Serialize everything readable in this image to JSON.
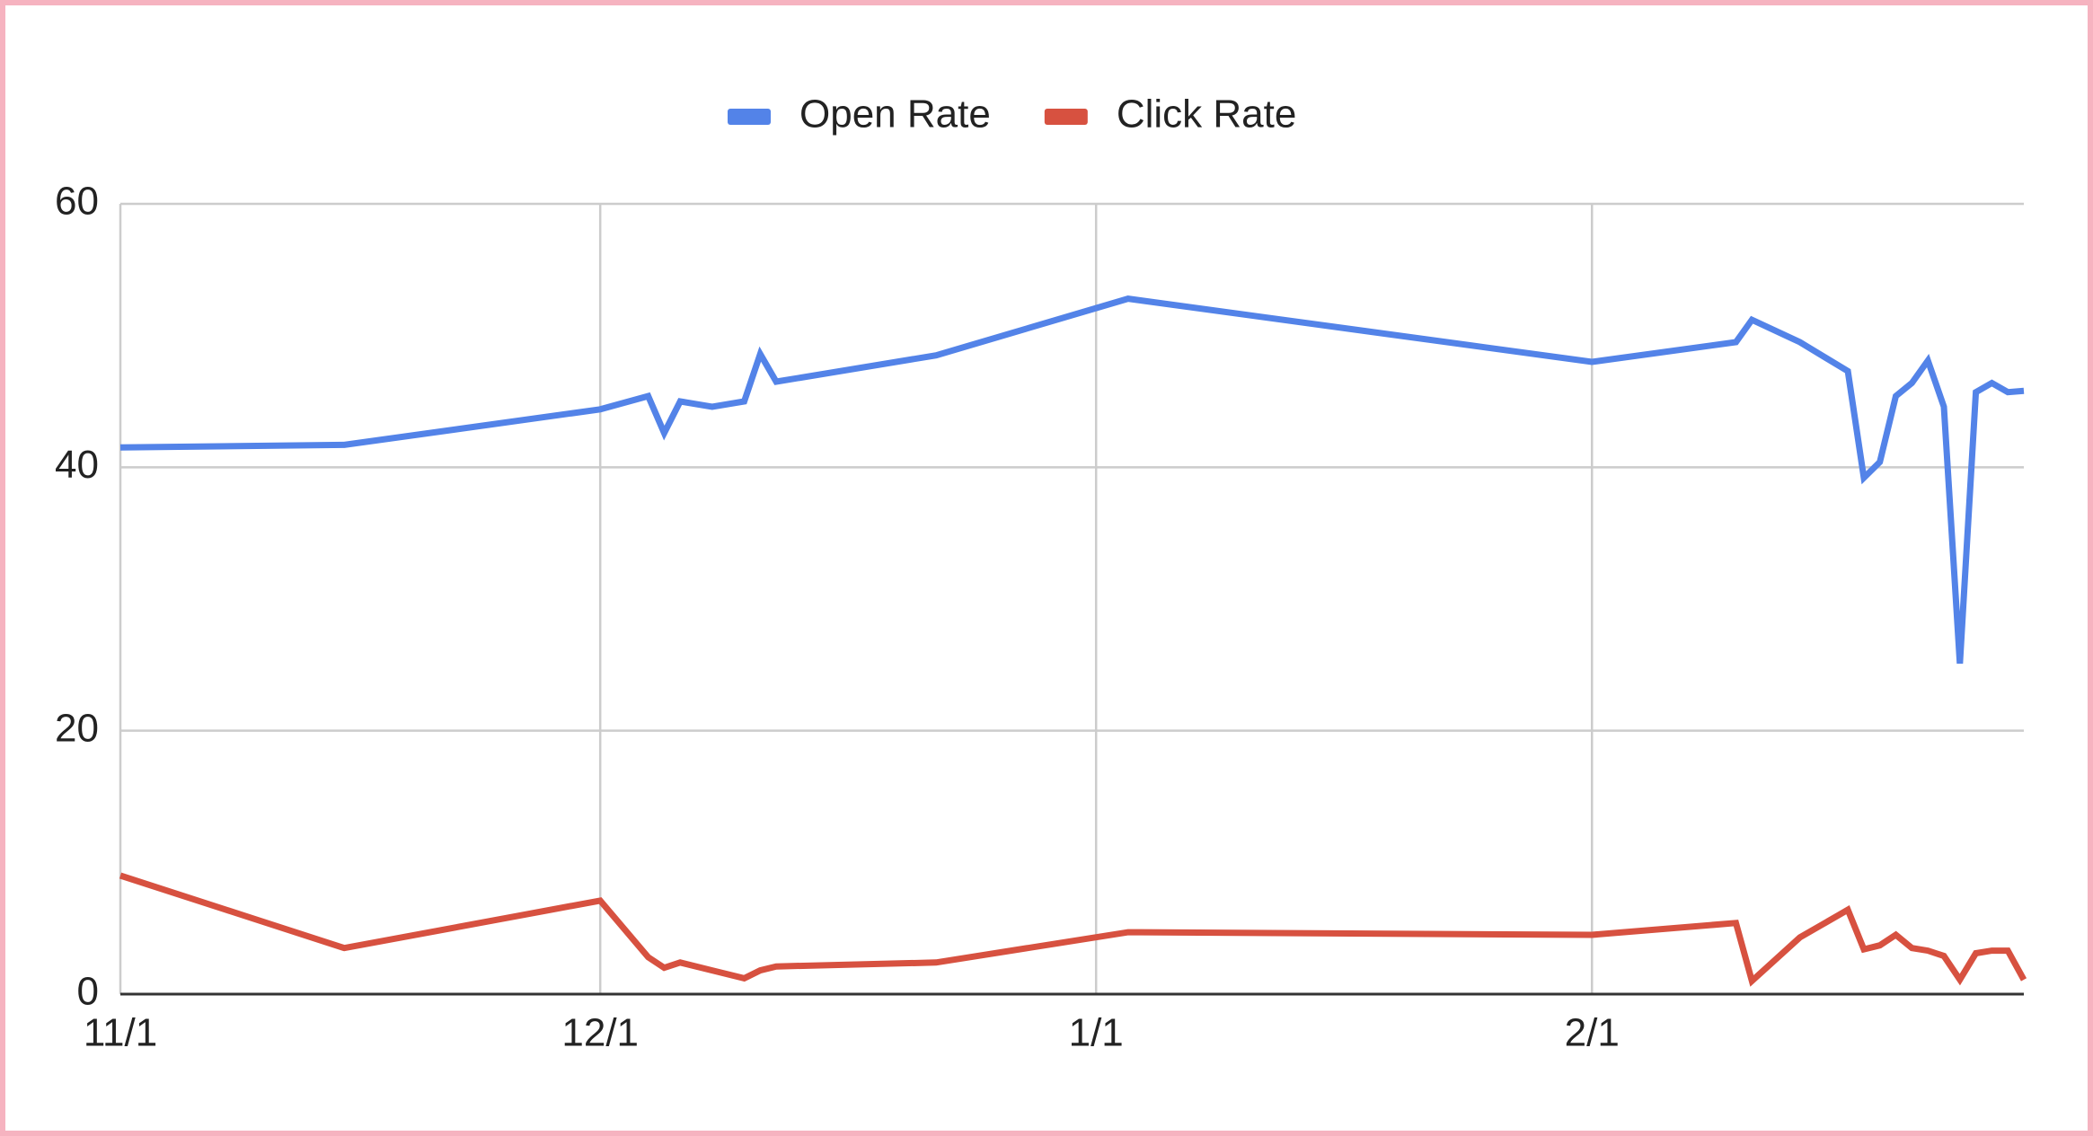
{
  "chart_data": {
    "type": "line",
    "x": [
      "11/1",
      "11/15",
      "12/1",
      "12/4",
      "12/5",
      "12/6",
      "12/8",
      "12/10",
      "12/11",
      "12/12",
      "12/22",
      "1/3",
      "2/1",
      "2/10",
      "2/11",
      "2/14",
      "2/17",
      "2/18",
      "2/19",
      "2/20",
      "2/21",
      "2/22",
      "2/23",
      "2/24",
      "2/25",
      "2/26",
      "2/27",
      "2/28"
    ],
    "series": [
      {
        "name": "Open Rate",
        "color": "#5383e8",
        "values": [
          41.5,
          41.7,
          44.4,
          45.4,
          42.6,
          45.0,
          44.6,
          45.0,
          48.6,
          46.5,
          48.5,
          52.8,
          48.0,
          49.5,
          51.2,
          49.5,
          47.3,
          39.2,
          40.4,
          45.4,
          46.4,
          48.1,
          44.6,
          25.1,
          45.7,
          46.4,
          45.7,
          45.8
        ]
      },
      {
        "name": "Click Rate",
        "color": "#d75140",
        "values": [
          9.0,
          3.5,
          7.1,
          2.8,
          2.0,
          2.4,
          1.8,
          1.2,
          1.8,
          2.1,
          2.4,
          4.7,
          4.5,
          5.4,
          1.0,
          4.3,
          6.4,
          3.4,
          3.7,
          4.5,
          3.5,
          3.3,
          2.9,
          1.1,
          3.1,
          3.3,
          3.3,
          1.1
        ]
      }
    ],
    "xlim": [
      "11/1",
      "2/28"
    ],
    "xticks": [
      "11/1",
      "12/1",
      "1/1",
      "2/1"
    ],
    "ylim": [
      0,
      60
    ],
    "yticks": [
      0,
      20,
      40,
      60
    ],
    "grid": true,
    "legend": "top"
  }
}
